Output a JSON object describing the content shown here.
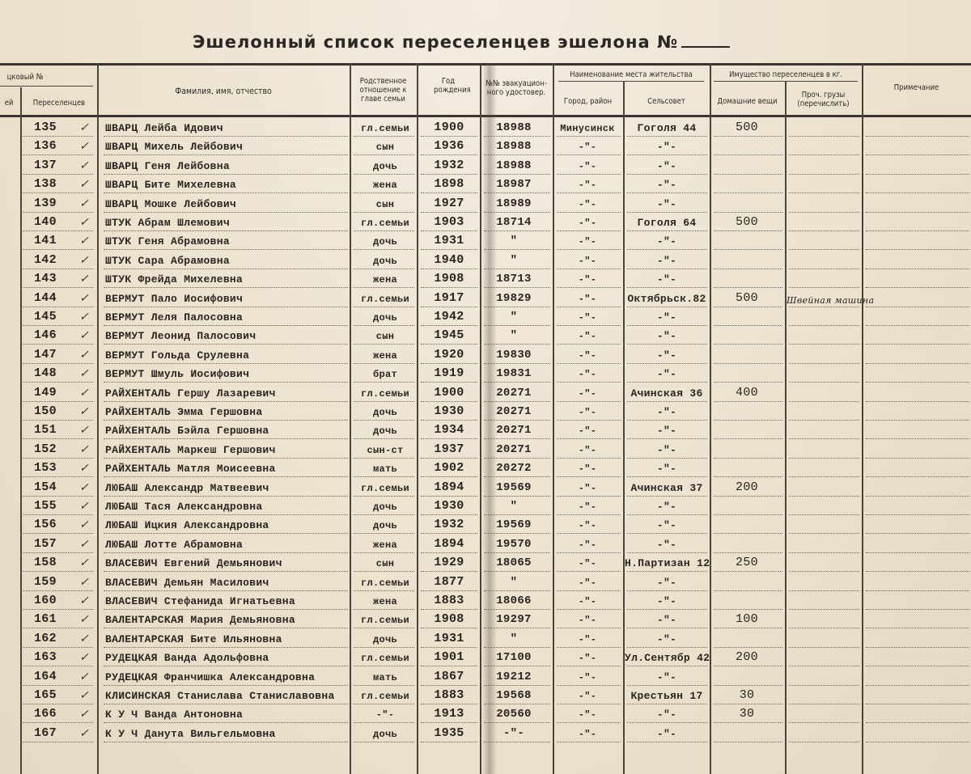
{
  "title": "Эшелонный список переселенцев эшелона №",
  "header": {
    "list_no": "цковый №",
    "col_families": "ей",
    "col_settlers": "Переселенцев",
    "col_name": "Фамилия, имя, отчество",
    "col_relation": "Родственное отношение к главе семьи",
    "col_year": "Год рождения",
    "col_doc": "№№ эвакуацион-ного удостовер.",
    "group_residence": "Наименование места жительства",
    "col_city": "Город, район",
    "col_selsovet": "Сельсовет",
    "group_property": "Имущество переселенцев в кг.",
    "col_household": "Домашние вещи",
    "col_other": "Проч. грузы (перечислить)",
    "col_note": "Примечание"
  },
  "rows": [
    {
      "num": "135",
      "check": "✓",
      "name": "ШВАРЦ Лейба Идович",
      "rel": "гл.семьи",
      "year": "1900",
      "doc": "18988",
      "city": "Минусинск",
      "sel": "Гоголя 44",
      "goods": "500",
      "other": ""
    },
    {
      "num": "136",
      "check": "✓",
      "name": "ШВАРЦ Михель Лейбович",
      "rel": "сын",
      "year": "1936",
      "doc": "18988",
      "city": "-\"-",
      "sel": "-\"-",
      "goods": "",
      "other": ""
    },
    {
      "num": "137",
      "check": "✓",
      "name": "ШВАРЦ Геня Лейбовна",
      "rel": "дочь",
      "year": "1932",
      "doc": "18988",
      "city": "-\"-",
      "sel": "-\"-",
      "goods": "",
      "other": ""
    },
    {
      "num": "138",
      "check": "✓",
      "name": "ШВАРЦ Бите Михелевна",
      "rel": "жена",
      "year": "1898",
      "doc": "18987",
      "city": "-\"-",
      "sel": "-\"-",
      "goods": "",
      "other": ""
    },
    {
      "num": "139",
      "check": "✓",
      "name": "ШВАРЦ Мошке Лейбович",
      "rel": "сын",
      "year": "1927",
      "doc": "18989",
      "city": "-\"-",
      "sel": "-\"-",
      "goods": "",
      "other": ""
    },
    {
      "num": "140",
      "check": "✓",
      "name": "ШТУК Абрам Шлемович",
      "rel": "гл.семьи",
      "year": "1903",
      "doc": "18714",
      "city": "-\"-",
      "sel": "Гоголя 64",
      "goods": "500",
      "other": ""
    },
    {
      "num": "141",
      "check": "✓",
      "name": "ШТУК Геня Абрамовна",
      "rel": "дочь",
      "year": "1931",
      "doc": "\"",
      "city": "-\"-",
      "sel": "-\"-",
      "goods": "",
      "other": ""
    },
    {
      "num": "142",
      "check": "✓",
      "name": "ШТУК Сара Абрамовна",
      "rel": "дочь",
      "year": "1940",
      "doc": "\"",
      "city": "-\"-",
      "sel": "-\"-",
      "goods": "",
      "other": ""
    },
    {
      "num": "143",
      "check": "✓",
      "name": "ШТУК Фрейда Михелевна",
      "rel": "жена",
      "year": "1908",
      "doc": "18713",
      "city": "-\"-",
      "sel": "-\"-",
      "goods": "",
      "other": ""
    },
    {
      "num": "144",
      "check": "✓",
      "name": "ВЕРМУТ Пало Иосифович",
      "rel": "гл.семьи",
      "year": "1917",
      "doc": "19829",
      "city": "-\"-",
      "sel": "Октябрьск.82",
      "goods": "500",
      "other": "Швейная машина"
    },
    {
      "num": "145",
      "check": "✓",
      "name": "ВЕРМУТ Леля Палосовна",
      "rel": "дочь",
      "year": "1942",
      "doc": "\"",
      "city": "-\"-",
      "sel": "-\"-",
      "goods": "",
      "other": ""
    },
    {
      "num": "146",
      "check": "✓",
      "name": "ВЕРМУТ Леонид Палосович",
      "rel": "сын",
      "year": "1945",
      "doc": "\"",
      "city": "-\"-",
      "sel": "-\"-",
      "goods": "",
      "other": ""
    },
    {
      "num": "147",
      "check": "✓",
      "name": "ВЕРМУТ Гольда Срулевна",
      "rel": "жена",
      "year": "1920",
      "doc": "19830",
      "city": "-\"-",
      "sel": "-\"-",
      "goods": "",
      "other": ""
    },
    {
      "num": "148",
      "check": "✓",
      "name": "ВЕРМУТ Шмуль Иосифович",
      "rel": "брат",
      "year": "1919",
      "doc": "19831",
      "city": "-\"-",
      "sel": "-\"-",
      "goods": "",
      "other": ""
    },
    {
      "num": "149",
      "check": "✓",
      "name": "РАЙХЕНТАЛЬ Гершу Лазаревич",
      "rel": "гл.семьи",
      "year": "1900",
      "doc": "20271",
      "city": "-\"-",
      "sel": "Ачинская 36",
      "goods": "400",
      "other": ""
    },
    {
      "num": "150",
      "check": "✓",
      "name": "РАЙХЕНТАЛЬ Эмма Гершовна",
      "rel": "дочь",
      "year": "1930",
      "doc": "20271",
      "city": "-\"-",
      "sel": "-\"-",
      "goods": "",
      "other": ""
    },
    {
      "num": "151",
      "check": "✓",
      "name": "РАЙХЕНТАЛЬ Бэйла Гершовна",
      "rel": "дочь",
      "year": "1934",
      "doc": "20271",
      "city": "-\"-",
      "sel": "-\"-",
      "goods": "",
      "other": ""
    },
    {
      "num": "152",
      "check": "✓",
      "name": "РАЙХЕНТАЛЬ Маркеш Гершович",
      "rel": "сын-ст",
      "year": "1937",
      "doc": "20271",
      "city": "-\"-",
      "sel": "-\"-",
      "goods": "",
      "other": ""
    },
    {
      "num": "153",
      "check": "✓",
      "name": "РАЙХЕНТАЛЬ Матля Моисеевна",
      "rel": "мать",
      "year": "1902",
      "doc": "20272",
      "city": "-\"-",
      "sel": "-\"-",
      "goods": "",
      "other": ""
    },
    {
      "num": "154",
      "check": "✓",
      "name": "ЛЮБАШ Александр Матвеевич",
      "rel": "гл.семьи",
      "year": "1894",
      "doc": "19569",
      "city": "-\"-",
      "sel": "Ачинская 37",
      "goods": "200",
      "other": ""
    },
    {
      "num": "155",
      "check": "✓",
      "name": "ЛЮБАШ Тася Александровна",
      "rel": "дочь",
      "year": "1930",
      "doc": "\"",
      "city": "-\"-",
      "sel": "-\"-",
      "goods": "",
      "other": ""
    },
    {
      "num": "156",
      "check": "✓",
      "name": "ЛЮБАШ Ицкия Александровна",
      "rel": "дочь",
      "year": "1932",
      "doc": "19569",
      "city": "-\"-",
      "sel": "-\"-",
      "goods": "",
      "other": ""
    },
    {
      "num": "157",
      "check": "✓",
      "name": "ЛЮБАШ Лотте Абрамовна",
      "rel": "жена",
      "year": "1894",
      "doc": "19570",
      "city": "-\"-",
      "sel": "-\"-",
      "goods": "",
      "other": ""
    },
    {
      "num": "158",
      "check": "✓",
      "name": "ВЛАСЕВИЧ Евгений Демьянович",
      "rel": "сын",
      "year": "1929",
      "doc": "18065",
      "city": "-\"-",
      "sel": "Н.Партизан 12",
      "goods": "250",
      "other": ""
    },
    {
      "num": "159",
      "check": "✓",
      "name": "ВЛАСЕВИЧ Демьян Масилович",
      "rel": "гл.семьи",
      "year": "1877",
      "doc": "\"",
      "city": "-\"-",
      "sel": "-\"-",
      "goods": "",
      "other": ""
    },
    {
      "num": "160",
      "check": "✓",
      "name": "ВЛАСЕВИЧ Стефанида Игнатьевна",
      "rel": "жена",
      "year": "1883",
      "doc": "18066",
      "city": "-\"-",
      "sel": "-\"-",
      "goods": "",
      "other": ""
    },
    {
      "num": "161",
      "check": "✓",
      "name": "ВАЛЕНТАРСКАЯ Мария Демьяновна",
      "rel": "гл.семьи",
      "year": "1908",
      "doc": "19297",
      "city": "-\"-",
      "sel": "-\"-",
      "goods": "100",
      "other": ""
    },
    {
      "num": "162",
      "check": "✓",
      "name": "ВАЛЕНТАРСКАЯ Бите Ильяновна",
      "rel": "дочь",
      "year": "1931",
      "doc": "\"",
      "city": "-\"-",
      "sel": "-\"-",
      "goods": "",
      "other": ""
    },
    {
      "num": "163",
      "check": "✓",
      "name": "РУДЕЦКАЯ Ванда Адольфовна",
      "rel": "гл.семьи",
      "year": "1901",
      "doc": "17100",
      "city": "-\"-",
      "sel": "Ул.Сентябр 42",
      "goods": "200",
      "other": ""
    },
    {
      "num": "164",
      "check": "✓",
      "name": "РУДЕЦКАЯ Франчишка Александровна",
      "rel": "мать",
      "year": "1867",
      "doc": "19212",
      "city": "-\"-",
      "sel": "-\"-",
      "goods": "",
      "other": ""
    },
    {
      "num": "165",
      "check": "✓",
      "name": "КЛИСИНСКАЯ Станислава Станиславовна",
      "rel": "гл.семьи",
      "year": "1883",
      "doc": "19568",
      "city": "-\"-",
      "sel": "Крестьян 17",
      "goods": "30",
      "other": ""
    },
    {
      "num": "166",
      "check": "✓",
      "name": "К У Ч Ванда Антоновна",
      "rel": "-\"-",
      "year": "1913",
      "doc": "20560",
      "city": "-\"-",
      "sel": "-\"-",
      "goods": "30",
      "other": ""
    },
    {
      "num": "167",
      "check": "✓",
      "name": "К У Ч Данута Вильгельмовна",
      "rel": "дочь",
      "year": "1935",
      "doc": "-\"-",
      "city": "-\"-",
      "sel": "-\"-",
      "goods": "",
      "other": ""
    }
  ]
}
